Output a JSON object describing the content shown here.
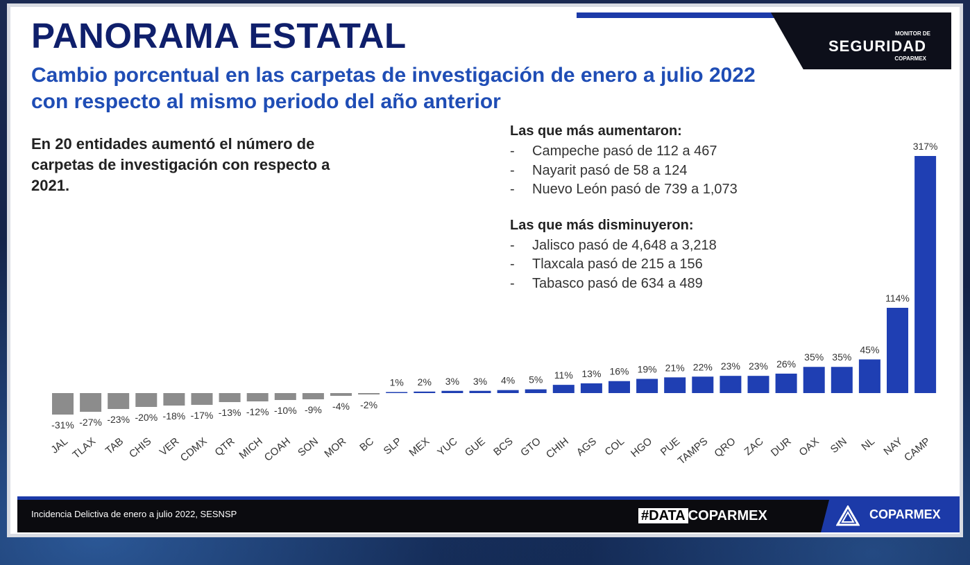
{
  "slide": {
    "title": "PANORAMA ESTATAL",
    "subtitle": "Cambio porcentual en las carpetas de investigación de enero a julio 2022 con respecto al mismo periodo del año anterior",
    "intro": "En 20 entidades aumentó el número de carpetas de investigación con respecto a 2021."
  },
  "logo": {
    "line1": "MONITOR DE",
    "line2": "SEGURIDAD",
    "line3": "COPARMEX"
  },
  "increases": {
    "heading": "Las que más aumentaron:",
    "items": [
      "Campeche pasó de 112 a 467",
      "Nayarit pasó de 58 a 124",
      "Nuevo León pasó de 739 a 1,073"
    ]
  },
  "decreases": {
    "heading": "Las que más disminuyeron:",
    "items": [
      "Jalisco pasó de 4,648 a 3,218",
      "Tlaxcala pasó de 215 a 156",
      "Tabasco pasó de 634 a 489"
    ]
  },
  "footer": {
    "source": "Incidencia Delictiva de enero a julio 2022, SESNSP",
    "hashtag_left": "#DATA",
    "hashtag_right": "COPARMEX",
    "brand": "COPARMEX"
  },
  "colors": {
    "negative_bar": "#8c8c8c",
    "positive_bar": "#1f3fb3",
    "title": "#0f1f6b",
    "subtitle": "#1f4db5",
    "accent": "#1c3aa8"
  },
  "chart_data": {
    "type": "bar",
    "categories": [
      "JAL",
      "TLAX",
      "TAB",
      "CHIS",
      "VER",
      "CDMX",
      "QTR",
      "MICH",
      "COAH",
      "SON",
      "MOR",
      "BC",
      "SLP",
      "MEX",
      "YUC",
      "GUE",
      "BCS",
      "GTO",
      "CHIH",
      "AGS",
      "COL",
      "HGO",
      "PUE",
      "TAMPS",
      "QRO",
      "ZAC",
      "DUR",
      "OAX",
      "SIN",
      "NL",
      "NAY",
      "CAMP"
    ],
    "values": [
      -31,
      -27,
      -23,
      -20,
      -18,
      -17,
      -13,
      -12,
      -10,
      -9,
      -4,
      -2,
      1,
      2,
      3,
      3,
      4,
      5,
      11,
      13,
      16,
      19,
      21,
      22,
      23,
      23,
      26,
      35,
      35,
      45,
      114,
      317
    ],
    "labels": [
      "-31%",
      "-27%",
      "-23%",
      "-20%",
      "-18%",
      "-17%",
      "-13%",
      "-12%",
      "-10%",
      "-9%",
      "-4%",
      "-2%",
      "1%",
      "2%",
      "3%",
      "3%",
      "4%",
      "5%",
      "11%",
      "13%",
      "16%",
      "19%",
      "21%",
      "22%",
      "23%",
      "23%",
      "26%",
      "35%",
      "35%",
      "45%",
      "114%",
      "317%"
    ],
    "title": "",
    "xlabel": "",
    "ylabel": "",
    "grid": false,
    "legend": "none"
  }
}
